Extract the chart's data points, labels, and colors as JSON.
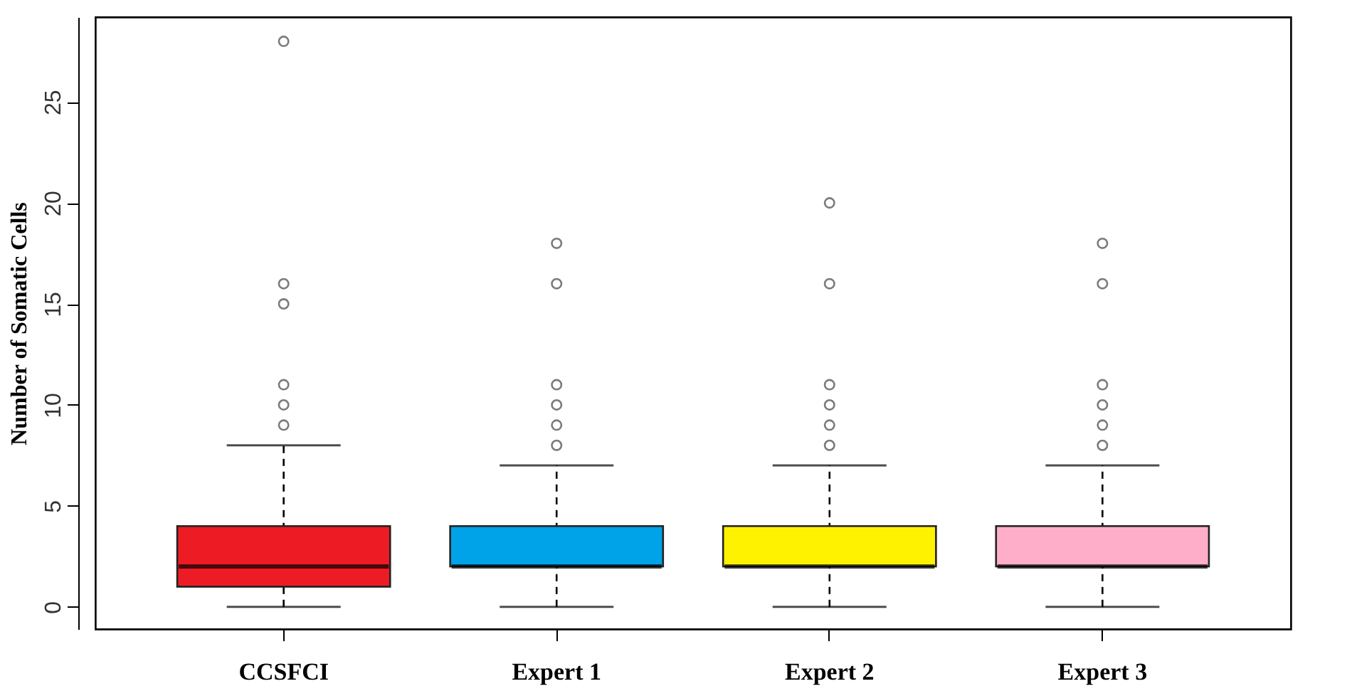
{
  "chart_data": {
    "type": "box",
    "ylabel": "Number of Somatic Cells",
    "categories": [
      "CCSFCI",
      "Expert 1",
      "Expert 2",
      "Expert 3"
    ],
    "colors": [
      "#ed1c24",
      "#00a2e8",
      "#fff200",
      "#ffaec9"
    ],
    "boxes": [
      {
        "low": 0,
        "q1": 1,
        "median": 2,
        "q3": 4,
        "high": 8,
        "outliers": [
          9,
          10,
          11,
          15,
          16,
          28
        ]
      },
      {
        "low": 0,
        "q1": 2,
        "median": 2,
        "q3": 4,
        "high": 7,
        "outliers": [
          8,
          9,
          10,
          11,
          16,
          18
        ]
      },
      {
        "low": 0,
        "q1": 2,
        "median": 2,
        "q3": 4,
        "high": 7,
        "outliers": [
          8,
          9,
          10,
          11,
          16,
          20
        ]
      },
      {
        "low": 0,
        "q1": 2,
        "median": 2,
        "q3": 4,
        "high": 7,
        "outliers": [
          8,
          9,
          10,
          11,
          16,
          18
        ]
      }
    ],
    "ylim": [
      -1.1,
      29.2
    ],
    "yticks": [
      0,
      5,
      10,
      15,
      20,
      25
    ]
  }
}
